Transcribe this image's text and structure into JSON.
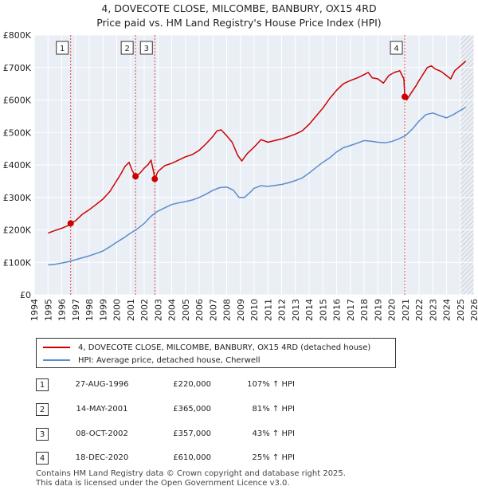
{
  "title_line1": "4, DOVECOTE CLOSE, MILCOMBE, BANBURY, OX15 4RD",
  "title_line2": "Price paid vs. HM Land Registry's House Price Index (HPI)",
  "chart_data": {
    "type": "line",
    "x_range": [
      1994,
      2026
    ],
    "ylim": [
      0,
      800000
    ],
    "x_ticks": [
      1994,
      1995,
      1996,
      1997,
      1998,
      1999,
      2000,
      2001,
      2002,
      2003,
      2004,
      2005,
      2006,
      2007,
      2008,
      2009,
      2010,
      2011,
      2012,
      2013,
      2014,
      2015,
      2016,
      2017,
      2018,
      2019,
      2020,
      2021,
      2022,
      2023,
      2024,
      2025,
      2026
    ],
    "y_ticks": [
      {
        "value": 0,
        "label": "£0"
      },
      {
        "value": 100000,
        "label": "£100K"
      },
      {
        "value": 200000,
        "label": "£200K"
      },
      {
        "value": 300000,
        "label": "£300K"
      },
      {
        "value": 400000,
        "label": "£400K"
      },
      {
        "value": 500000,
        "label": "£500K"
      },
      {
        "value": 600000,
        "label": "£600K"
      },
      {
        "value": 700000,
        "label": "£700K"
      },
      {
        "value": 800000,
        "label": "£800K"
      }
    ],
    "grid": true,
    "hatch_after": 2025.0,
    "series": [
      {
        "name": "4, DOVECOTE CLOSE, MILCOMBE, BANBURY, OX15 4RD (detached house)",
        "color": "#cc0000",
        "points": [
          [
            1995.0,
            190000
          ],
          [
            1995.5,
            198000
          ],
          [
            1996.0,
            205000
          ],
          [
            1996.4,
            212000
          ],
          [
            1996.65,
            220000
          ],
          [
            1997.0,
            228000
          ],
          [
            1997.5,
            248000
          ],
          [
            1998.0,
            262000
          ],
          [
            1998.5,
            278000
          ],
          [
            1999.0,
            295000
          ],
          [
            1999.5,
            318000
          ],
          [
            2000.0,
            352000
          ],
          [
            2000.3,
            372000
          ],
          [
            2000.6,
            395000
          ],
          [
            2000.9,
            408000
          ],
          [
            2001.1,
            385000
          ],
          [
            2001.37,
            365000
          ],
          [
            2001.7,
            375000
          ],
          [
            2002.0,
            390000
          ],
          [
            2002.3,
            402000
          ],
          [
            2002.5,
            415000
          ],
          [
            2002.7,
            375000
          ],
          [
            2002.77,
            357000
          ],
          [
            2003.0,
            380000
          ],
          [
            2003.5,
            398000
          ],
          [
            2004.0,
            405000
          ],
          [
            2004.5,
            415000
          ],
          [
            2005.0,
            425000
          ],
          [
            2005.5,
            432000
          ],
          [
            2006.0,
            445000
          ],
          [
            2006.5,
            465000
          ],
          [
            2007.0,
            488000
          ],
          [
            2007.3,
            505000
          ],
          [
            2007.6,
            508000
          ],
          [
            2008.0,
            490000
          ],
          [
            2008.4,
            470000
          ],
          [
            2008.8,
            430000
          ],
          [
            2009.1,
            412000
          ],
          [
            2009.5,
            435000
          ],
          [
            2010.0,
            455000
          ],
          [
            2010.5,
            478000
          ],
          [
            2011.0,
            470000
          ],
          [
            2011.5,
            475000
          ],
          [
            2012.0,
            480000
          ],
          [
            2012.5,
            487000
          ],
          [
            2013.0,
            495000
          ],
          [
            2013.5,
            505000
          ],
          [
            2014.0,
            525000
          ],
          [
            2014.5,
            550000
          ],
          [
            2015.0,
            575000
          ],
          [
            2015.5,
            605000
          ],
          [
            2016.0,
            630000
          ],
          [
            2016.5,
            650000
          ],
          [
            2017.0,
            660000
          ],
          [
            2017.5,
            668000
          ],
          [
            2018.0,
            678000
          ],
          [
            2018.3,
            685000
          ],
          [
            2018.6,
            668000
          ],
          [
            2019.0,
            665000
          ],
          [
            2019.4,
            652000
          ],
          [
            2019.8,
            675000
          ],
          [
            2020.2,
            685000
          ],
          [
            2020.6,
            690000
          ],
          [
            2020.9,
            665000
          ],
          [
            2020.96,
            610000
          ],
          [
            2021.1,
            600000
          ],
          [
            2021.4,
            620000
          ],
          [
            2021.8,
            645000
          ],
          [
            2022.0,
            660000
          ],
          [
            2022.3,
            680000
          ],
          [
            2022.6,
            700000
          ],
          [
            2022.9,
            705000
          ],
          [
            2023.2,
            695000
          ],
          [
            2023.6,
            688000
          ],
          [
            2024.0,
            675000
          ],
          [
            2024.3,
            665000
          ],
          [
            2024.6,
            690000
          ],
          [
            2025.0,
            705000
          ],
          [
            2025.4,
            720000
          ]
        ]
      },
      {
        "name": "HPI: Average price, detached house, Cherwell",
        "color": "#5b8ccc",
        "points": [
          [
            1995.0,
            92000
          ],
          [
            1995.5,
            94000
          ],
          [
            1996.0,
            98000
          ],
          [
            1996.5,
            102000
          ],
          [
            1997.0,
            108000
          ],
          [
            1997.5,
            114000
          ],
          [
            1998.0,
            120000
          ],
          [
            1998.5,
            127000
          ],
          [
            1999.0,
            135000
          ],
          [
            1999.5,
            148000
          ],
          [
            2000.0,
            162000
          ],
          [
            2000.5,
            175000
          ],
          [
            2001.0,
            190000
          ],
          [
            2001.5,
            203000
          ],
          [
            2002.0,
            220000
          ],
          [
            2002.5,
            242000
          ],
          [
            2003.0,
            258000
          ],
          [
            2003.5,
            268000
          ],
          [
            2004.0,
            278000
          ],
          [
            2004.5,
            283000
          ],
          [
            2005.0,
            287000
          ],
          [
            2005.5,
            292000
          ],
          [
            2006.0,
            300000
          ],
          [
            2006.5,
            310000
          ],
          [
            2007.0,
            322000
          ],
          [
            2007.5,
            330000
          ],
          [
            2008.0,
            332000
          ],
          [
            2008.5,
            322000
          ],
          [
            2008.9,
            300000
          ],
          [
            2009.3,
            300000
          ],
          [
            2009.7,
            315000
          ],
          [
            2010.0,
            328000
          ],
          [
            2010.5,
            336000
          ],
          [
            2011.0,
            334000
          ],
          [
            2011.5,
            337000
          ],
          [
            2012.0,
            340000
          ],
          [
            2012.5,
            345000
          ],
          [
            2013.0,
            352000
          ],
          [
            2013.5,
            360000
          ],
          [
            2014.0,
            375000
          ],
          [
            2014.5,
            392000
          ],
          [
            2015.0,
            408000
          ],
          [
            2015.5,
            422000
          ],
          [
            2016.0,
            440000
          ],
          [
            2016.5,
            453000
          ],
          [
            2017.0,
            460000
          ],
          [
            2017.5,
            467000
          ],
          [
            2018.0,
            475000
          ],
          [
            2018.5,
            473000
          ],
          [
            2019.0,
            470000
          ],
          [
            2019.5,
            468000
          ],
          [
            2020.0,
            472000
          ],
          [
            2020.5,
            480000
          ],
          [
            2021.0,
            490000
          ],
          [
            2021.5,
            510000
          ],
          [
            2022.0,
            535000
          ],
          [
            2022.5,
            555000
          ],
          [
            2023.0,
            560000
          ],
          [
            2023.5,
            552000
          ],
          [
            2024.0,
            545000
          ],
          [
            2024.5,
            555000
          ],
          [
            2025.0,
            568000
          ],
          [
            2025.4,
            578000
          ]
        ]
      }
    ],
    "sale_markers": [
      {
        "label": "1",
        "x": 1996.65,
        "y": 220000
      },
      {
        "label": "2",
        "x": 2001.37,
        "y": 365000
      },
      {
        "label": "3",
        "x": 2002.77,
        "y": 357000
      },
      {
        "label": "4",
        "x": 2020.96,
        "y": 610000
      }
    ]
  },
  "legend": {
    "property_label": "4, DOVECOTE CLOSE, MILCOMBE, BANBURY, OX15 4RD (detached house)",
    "hpi_label": "HPI: Average price, detached house, Cherwell"
  },
  "sales": [
    {
      "num": "1",
      "date": "27-AUG-1996",
      "price": "£220,000",
      "hpi": "107% ↑ HPI"
    },
    {
      "num": "2",
      "date": "14-MAY-2001",
      "price": "£365,000",
      "hpi": "81% ↑ HPI"
    },
    {
      "num": "3",
      "date": "08-OCT-2002",
      "price": "£357,000",
      "hpi": "43% ↑ HPI"
    },
    {
      "num": "4",
      "date": "18-DEC-2020",
      "price": "£610,000",
      "hpi": "25% ↑ HPI"
    }
  ],
  "footer_line1": "Contains HM Land Registry data © Crown copyright and database right 2025.",
  "footer_line2": "This data is licensed under the Open Government Licence v3.0."
}
